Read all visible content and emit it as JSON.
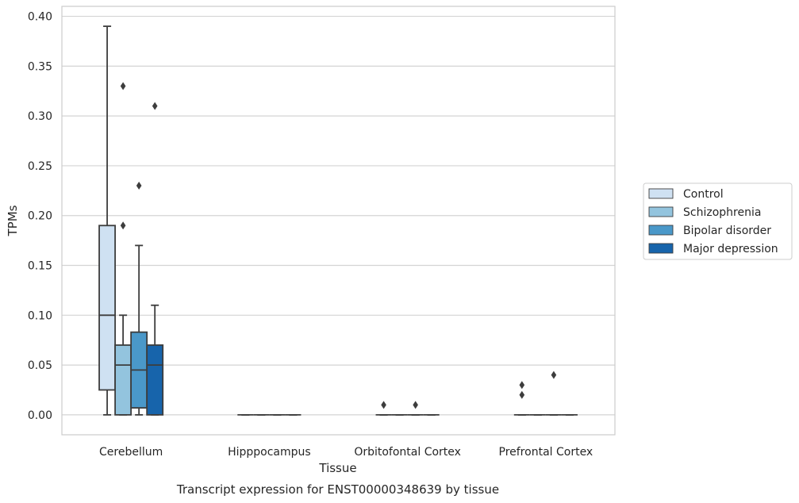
{
  "caption": "Transcript expression for ENST00000348639 by tissue",
  "chart_data": {
    "type": "boxplot",
    "xlabel": "Tissue",
    "ylabel": "TPMs",
    "ylim": [
      -0.02,
      0.41
    ],
    "yticks": [
      "0.00",
      "0.05",
      "0.10",
      "0.15",
      "0.20",
      "0.25",
      "0.30",
      "0.35",
      "0.40"
    ],
    "grid": "horizontal",
    "legend_position": "right",
    "categories": [
      "Cerebellum",
      "Hipppocampus",
      "Orbitofontal Cortex",
      "Prefrontal Cortex"
    ],
    "series": [
      {
        "name": "Control",
        "color": "#cfe1f2",
        "boxes": [
          {
            "whislo": 0.0,
            "q1": 0.025,
            "med": 0.1,
            "q3": 0.19,
            "whishi": 0.39,
            "fliers": []
          },
          {
            "whislo": 0.0,
            "q1": 0.0,
            "med": 0.0,
            "q3": 0.0,
            "whishi": 0.0,
            "fliers": []
          },
          {
            "whislo": 0.0,
            "q1": 0.0,
            "med": 0.0,
            "q3": 0.0,
            "whishi": 0.0,
            "fliers": [
              0.01
            ]
          },
          {
            "whislo": 0.0,
            "q1": 0.0,
            "med": 0.0,
            "q3": 0.0,
            "whishi": 0.0,
            "fliers": [
              0.02,
              0.03
            ]
          }
        ]
      },
      {
        "name": "Schizophrenia",
        "color": "#93c4de",
        "boxes": [
          {
            "whislo": 0.0,
            "q1": 0.0,
            "med": 0.05,
            "q3": 0.07,
            "whishi": 0.1,
            "fliers": [
              0.19,
              0.33
            ]
          },
          {
            "whislo": 0.0,
            "q1": 0.0,
            "med": 0.0,
            "q3": 0.0,
            "whishi": 0.0,
            "fliers": []
          },
          {
            "whislo": 0.0,
            "q1": 0.0,
            "med": 0.0,
            "q3": 0.0,
            "whishi": 0.0,
            "fliers": []
          },
          {
            "whislo": 0.0,
            "q1": 0.0,
            "med": 0.0,
            "q3": 0.0,
            "whishi": 0.0,
            "fliers": []
          }
        ]
      },
      {
        "name": "Bipolar disorder",
        "color": "#4a98c9",
        "boxes": [
          {
            "whislo": 0.0,
            "q1": 0.007,
            "med": 0.045,
            "q3": 0.083,
            "whishi": 0.17,
            "fliers": [
              0.23
            ]
          },
          {
            "whislo": 0.0,
            "q1": 0.0,
            "med": 0.0,
            "q3": 0.0,
            "whishi": 0.0,
            "fliers": []
          },
          {
            "whislo": 0.0,
            "q1": 0.0,
            "med": 0.0,
            "q3": 0.0,
            "whishi": 0.0,
            "fliers": [
              0.01
            ]
          },
          {
            "whislo": 0.0,
            "q1": 0.0,
            "med": 0.0,
            "q3": 0.0,
            "whishi": 0.0,
            "fliers": [
              0.04
            ]
          }
        ]
      },
      {
        "name": "Major depression",
        "color": "#1764ab",
        "boxes": [
          {
            "whislo": 0.0,
            "q1": 0.0,
            "med": 0.05,
            "q3": 0.07,
            "whishi": 0.11,
            "fliers": [
              0.31
            ]
          },
          {
            "whislo": 0.0,
            "q1": 0.0,
            "med": 0.0,
            "q3": 0.0,
            "whishi": 0.0,
            "fliers": []
          },
          {
            "whislo": 0.0,
            "q1": 0.0,
            "med": 0.0,
            "q3": 0.0,
            "whishi": 0.0,
            "fliers": []
          },
          {
            "whislo": 0.0,
            "q1": 0.0,
            "med": 0.0,
            "q3": 0.0,
            "whishi": 0.0,
            "fliers": []
          }
        ]
      }
    ]
  }
}
